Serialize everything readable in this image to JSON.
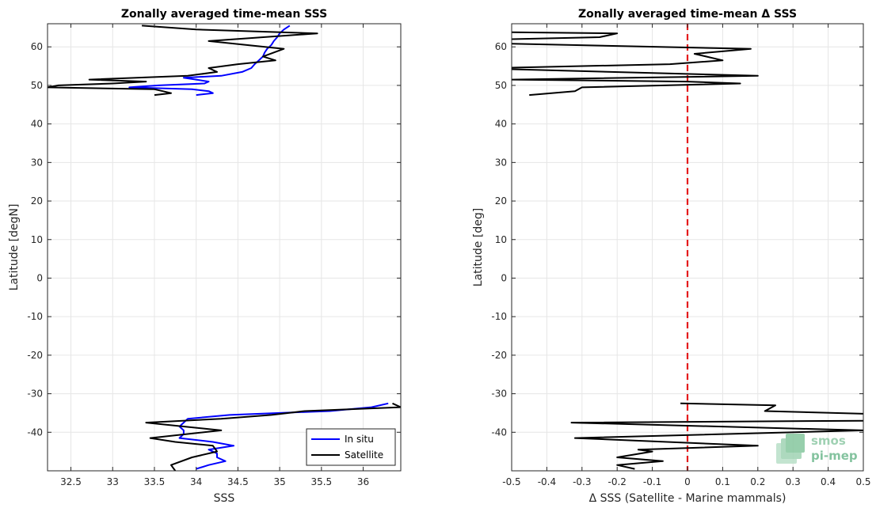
{
  "chart_data": [
    {
      "type": "line",
      "title": "Zonally averaged time-mean SSS",
      "xlabel": "SSS",
      "ylabel": "Latitude [degN]",
      "xlim": [
        32.22,
        36.45
      ],
      "ylim": [
        -50,
        66
      ],
      "xticks": [
        32.5,
        33,
        33.5,
        34,
        34.5,
        35,
        35.5,
        36
      ],
      "yticks": [
        -40,
        -30,
        -20,
        -10,
        0,
        10,
        20,
        30,
        40,
        50,
        60
      ],
      "grid": true,
      "legend": {
        "placement": "bottom-right"
      },
      "series": [
        {
          "name": "In situ",
          "color": "#0000ff",
          "segments": [
            [
              [
                35.12,
                65.5
              ],
              [
                35.05,
                64.5
              ],
              [
                35.0,
                63.5
              ],
              [
                34.97,
                62.5
              ],
              [
                34.93,
                61.5
              ],
              [
                34.9,
                60.5
              ],
              [
                34.85,
                59.5
              ],
              [
                34.82,
                58.5
              ],
              [
                34.8,
                57.5
              ],
              [
                34.75,
                56.5
              ],
              [
                34.7,
                55.5
              ],
              [
                34.66,
                54.5
              ],
              [
                34.55,
                53.5
              ],
              [
                34.3,
                52.5
              ],
              [
                33.85,
                52.0
              ],
              [
                34.0,
                51.5
              ],
              [
                34.15,
                51.0
              ],
              [
                34.1,
                50.5
              ],
              [
                33.55,
                50.0
              ],
              [
                33.2,
                49.5
              ],
              [
                33.95,
                49.0
              ],
              [
                34.15,
                48.5
              ],
              [
                34.2,
                48.0
              ],
              [
                34.0,
                47.5
              ]
            ],
            [
              [
                36.3,
                -32.5
              ],
              [
                36.1,
                -33.5
              ],
              [
                35.6,
                -34.5
              ],
              [
                35.0,
                -35.0
              ],
              [
                34.4,
                -35.5
              ],
              [
                33.9,
                -36.5
              ],
              [
                33.85,
                -37.5
              ],
              [
                33.8,
                -38.5
              ],
              [
                33.85,
                -39.5
              ],
              [
                33.85,
                -40.5
              ],
              [
                33.8,
                -41.5
              ],
              [
                34.2,
                -42.5
              ],
              [
                34.45,
                -43.5
              ],
              [
                34.15,
                -44.5
              ],
              [
                34.25,
                -45.5
              ],
              [
                34.25,
                -46.5
              ],
              [
                34.35,
                -47.5
              ],
              [
                34.15,
                -48.5
              ],
              [
                34.0,
                -49.5
              ]
            ]
          ]
        },
        {
          "name": "Satellite",
          "color": "#000000",
          "segments": [
            [
              [
                33.35,
                65.5
              ],
              [
                34.0,
                64.5
              ],
              [
                35.45,
                63.5
              ],
              [
                34.15,
                61.5
              ],
              [
                35.05,
                59.5
              ],
              [
                34.8,
                57.5
              ],
              [
                34.95,
                56.5
              ],
              [
                34.5,
                55.5
              ],
              [
                34.15,
                54.5
              ],
              [
                34.25,
                53.5
              ],
              [
                33.9,
                52.5
              ],
              [
                32.72,
                51.5
              ],
              [
                33.4,
                51.0
              ],
              [
                33.0,
                50.5
              ],
              [
                32.35,
                50.0
              ],
              [
                32.22,
                49.5
              ],
              [
                33.5,
                49.0
              ],
              [
                33.6,
                48.5
              ],
              [
                33.7,
                48.0
              ],
              [
                33.5,
                47.5
              ]
            ],
            [
              [
                36.35,
                -32.5
              ],
              [
                36.45,
                -33.5
              ],
              [
                35.3,
                -34.5
              ],
              [
                34.9,
                -35.5
              ],
              [
                34.3,
                -36.5
              ],
              [
                33.4,
                -37.5
              ],
              [
                33.85,
                -38.5
              ],
              [
                34.3,
                -39.5
              ],
              [
                33.45,
                -41.5
              ],
              [
                33.75,
                -42.5
              ],
              [
                34.2,
                -43.5
              ],
              [
                34.25,
                -45.0
              ],
              [
                33.95,
                -46.5
              ],
              [
                33.7,
                -48.5
              ],
              [
                33.75,
                -50.0
              ]
            ]
          ]
        }
      ]
    },
    {
      "type": "line",
      "title": "Zonally averaged time-mean Δ SSS",
      "xlabel": "Δ SSS (Satellite - Marine mammals)",
      "ylabel": "Latitude [deg]",
      "xlim": [
        -0.5,
        0.5
      ],
      "ylim": [
        -50,
        66
      ],
      "xticks": [
        -0.5,
        -0.4,
        -0.3,
        -0.2,
        -0.1,
        0,
        0.1,
        0.2,
        0.3,
        0.4,
        0.5
      ],
      "xtick_labels": [
        "-0.5",
        "-0.4",
        "-0.3",
        "-0.2",
        "-0.1",
        "0",
        "0.1",
        "0.2",
        "0.3",
        "0.4",
        "0.5"
      ],
      "yticks": [
        -40,
        -30,
        -20,
        -10,
        0,
        10,
        20,
        30,
        40,
        50,
        60
      ],
      "grid": true,
      "reference_line": {
        "x": 0,
        "color": "#e41a1c",
        "style": "dashed"
      },
      "series": [
        {
          "color": "#000000",
          "segments": [
            [
              [
                -0.5,
                63.8
              ],
              [
                -0.2,
                63.5
              ],
              [
                -0.25,
                62.5
              ],
              [
                -0.5,
                62.0
              ]
            ],
            [
              [
                -0.5,
                60.8
              ],
              [
                0.18,
                59.5
              ],
              [
                0.02,
                58.2
              ],
              [
                0.1,
                56.5
              ],
              [
                -0.05,
                55.5
              ],
              [
                -0.5,
                54.6
              ],
              [
                -0.5,
                54.2
              ],
              [
                0.2,
                52.5
              ],
              [
                -0.5,
                51.5
              ],
              [
                0.0,
                51.0
              ],
              [
                0.15,
                50.5
              ],
              [
                -0.3,
                49.5
              ],
              [
                -0.32,
                48.5
              ],
              [
                -0.45,
                47.5
              ]
            ],
            [
              [
                -0.02,
                -32.5
              ],
              [
                0.25,
                -33.0
              ],
              [
                0.22,
                -34.5
              ],
              [
                0.5,
                -35.2
              ]
            ],
            [
              [
                0.5,
                -37.0
              ],
              [
                -0.33,
                -37.5
              ],
              [
                0.5,
                -39.5
              ],
              [
                -0.32,
                -41.5
              ],
              [
                0.2,
                -43.5
              ],
              [
                -0.14,
                -44.5
              ],
              [
                -0.1,
                -45.0
              ],
              [
                -0.2,
                -46.5
              ],
              [
                -0.07,
                -47.5
              ],
              [
                -0.2,
                -48.5
              ],
              [
                -0.15,
                -49.5
              ]
            ]
          ]
        }
      ]
    }
  ],
  "logo": {
    "line1": "smos",
    "line2": "pi-mep"
  }
}
